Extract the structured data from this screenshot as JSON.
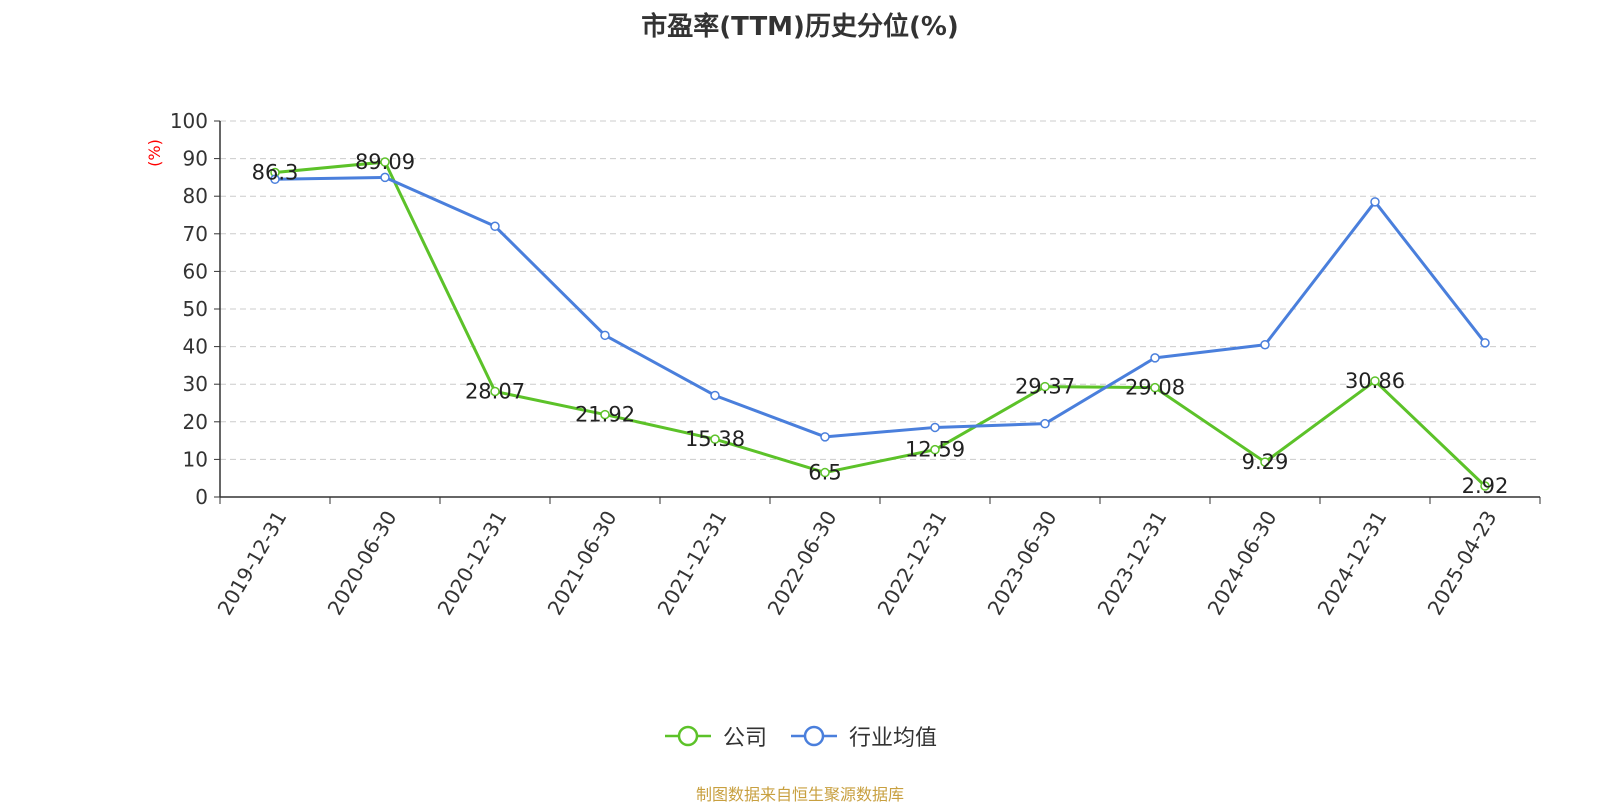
{
  "chart_data": {
    "type": "line",
    "title": "市盈率(TTM)历史分位(%)",
    "ylabel": "(%)",
    "xlabel": "",
    "categories": [
      "2019-12-31",
      "2020-06-30",
      "2020-12-31",
      "2021-06-30",
      "2021-12-31",
      "2022-06-30",
      "2022-12-31",
      "2023-06-30",
      "2023-12-31",
      "2024-06-30",
      "2024-12-31",
      "2025-04-23"
    ],
    "ylim": [
      0,
      100
    ],
    "yticks": [
      0,
      10,
      20,
      30,
      40,
      50,
      60,
      70,
      80,
      90,
      100
    ],
    "grid": true,
    "legend_position": "bottom",
    "series": [
      {
        "name": "公司",
        "color": "#5cc229",
        "values": [
          86.3,
          89.09,
          28.07,
          21.92,
          15.38,
          6.5,
          12.59,
          29.37,
          29.08,
          9.29,
          30.86,
          2.92
        ],
        "labels": [
          "86.3",
          "89.09",
          "28.07",
          "21.92",
          "15.38",
          "6.5",
          "12.59",
          "29.37",
          "29.08",
          "9.29",
          "30.86",
          "2.92"
        ]
      },
      {
        "name": "行业均值",
        "color": "#4a7fdc",
        "values": [
          84.5,
          85.0,
          72.0,
          43.0,
          27.0,
          16.0,
          18.5,
          19.5,
          37.0,
          40.5,
          78.5,
          41.0
        ]
      }
    ]
  },
  "footer": {
    "source": "制图数据来自恒生聚源数据库"
  }
}
